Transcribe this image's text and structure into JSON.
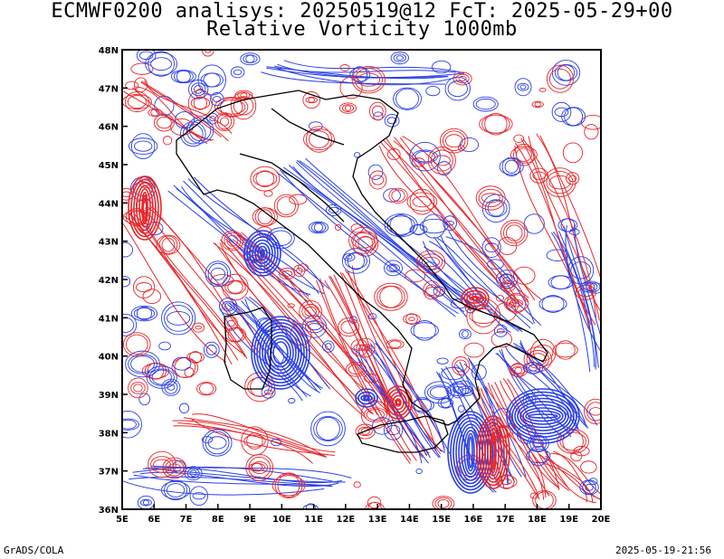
{
  "header": {
    "title_line1": "ECMWF0200 analisys: 20250519@12 FcT: 2025-05-29+00",
    "title_line2": "Relative Vorticity 1000mb"
  },
  "footer": {
    "left": "GrADS/COLA",
    "right": "2025-05-19-21:56"
  },
  "map": {
    "lon_ticks": [
      "5E",
      "6E",
      "7E",
      "8E",
      "9E",
      "10E",
      "11E",
      "12E",
      "13E",
      "14E",
      "15E",
      "16E",
      "17E",
      "18E",
      "19E",
      "20E"
    ],
    "lat_ticks": [
      "48N",
      "47N",
      "46N",
      "45N",
      "44N",
      "43N",
      "42N",
      "41N",
      "40N",
      "39N",
      "38N",
      "37N",
      "36N"
    ],
    "lon_range": [
      5,
      20
    ],
    "lat_range": [
      36,
      48
    ],
    "colors": {
      "positive": "#e8262a",
      "negative": "#2a3fe8",
      "coast": "#000000"
    }
  }
}
